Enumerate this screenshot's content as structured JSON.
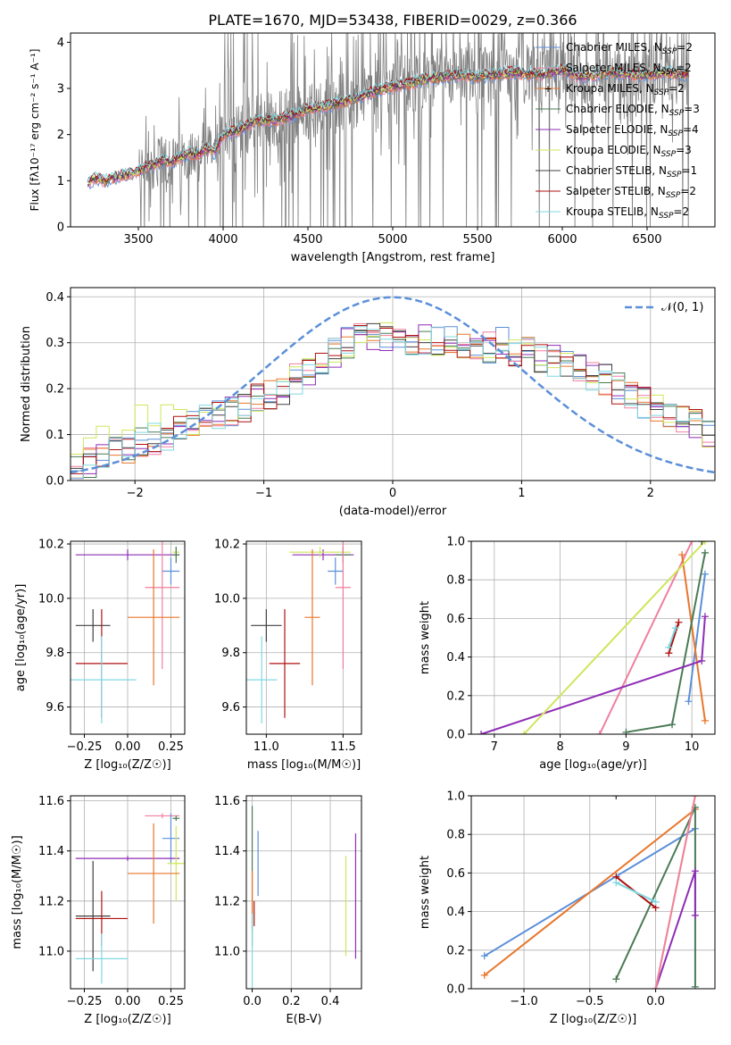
{
  "figure": {
    "title": "PLATE=1670, MJD=53438, FIBERID=0029, z=0.366"
  },
  "colors": {
    "chabrier_miles": "#5b8fd9",
    "salpeter_miles": "#f07f9f",
    "kroupa_miles": "#e8762b",
    "chabrier_elodie": "#4a7a55",
    "salpeter_elodie": "#8e2db5",
    "kroupa_elodie": "#cfe65a",
    "chabrier_stelib": "#404040",
    "salpeter_stelib": "#b01010",
    "kroupa_stelib": "#80d8e0",
    "data": "#808080",
    "gaussian": "#5b8fd9"
  },
  "chart_data": [
    {
      "id": "spectrum",
      "type": "line",
      "xlabel": "wavelength [Angstrom, rest frame]",
      "ylabel": "Flux [fλ10⁻¹⁷ erg cm⁻² s⁻¹ A⁻¹]",
      "xlim": [
        3100,
        6900
      ],
      "ylim": [
        0,
        4.2
      ],
      "xticks": [
        3500,
        4000,
        4500,
        5000,
        5500,
        6000,
        6500
      ],
      "yticks": [
        0,
        1,
        2,
        3,
        4
      ],
      "legend_position": "top-right",
      "legend": [
        {
          "label": "Chabrier MILES, N",
          "sub": "SSP",
          "suffix": "=2",
          "color_key": "chabrier_miles"
        },
        {
          "label": "Salpeter MILES, N",
          "sub": "SSP",
          "suffix": "=2",
          "color_key": "salpeter_miles"
        },
        {
          "label": "Kroupa MILES, N",
          "sub": "SSP",
          "suffix": "=2",
          "color_key": "kroupa_miles"
        },
        {
          "label": "Chabrier ELODIE, N",
          "sub": "SSP",
          "suffix": "=3",
          "color_key": "chabrier_elodie"
        },
        {
          "label": "Salpeter ELODIE, N",
          "sub": "SSP",
          "suffix": "=4",
          "color_key": "salpeter_elodie"
        },
        {
          "label": "Kroupa ELODIE, N",
          "sub": "SSP",
          "suffix": "=3",
          "color_key": "kroupa_elodie"
        },
        {
          "label": "Chabrier STELIB, N",
          "sub": "SSP",
          "suffix": "=1",
          "color_key": "chabrier_stelib"
        },
        {
          "label": "Salpeter STELIB, N",
          "sub": "SSP",
          "suffix": "=2",
          "color_key": "salpeter_stelib"
        },
        {
          "label": "Kroupa STELIB, N",
          "sub": "SSP",
          "suffix": "=2",
          "color_key": "kroupa_stelib"
        }
      ],
      "continuum_x": [
        3200,
        3250,
        3300,
        3350,
        3400,
        3450,
        3500,
        3550,
        3600,
        3650,
        3700,
        3750,
        3800,
        3850,
        3900,
        3950,
        4000,
        4100,
        4200,
        4300,
        4400,
        4500,
        4600,
        4700,
        4800,
        4900,
        5000,
        5100,
        5200,
        5300,
        5400,
        5500,
        5600,
        5700,
        5800,
        5900,
        6000,
        6100,
        6200,
        6300,
        6400,
        6500,
        6600,
        6700,
        6750
      ],
      "continuum_y": [
        0.95,
        1.05,
        1.0,
        1.05,
        1.1,
        1.15,
        1.2,
        1.3,
        1.35,
        1.45,
        1.4,
        1.5,
        1.6,
        1.55,
        1.7,
        1.6,
        2.0,
        2.1,
        2.3,
        2.3,
        2.4,
        2.55,
        2.6,
        2.7,
        2.8,
        2.95,
        3.05,
        3.1,
        3.2,
        3.25,
        3.3,
        3.25,
        3.3,
        3.35,
        3.3,
        3.3,
        3.4,
        3.25,
        3.3,
        3.35,
        3.3,
        3.3,
        3.35,
        3.3,
        3.3
      ]
    },
    {
      "id": "residuals",
      "type": "histogram",
      "xlabel": "(data-model)/error",
      "ylabel": "Normed distribution",
      "xlim": [
        -2.5,
        2.5
      ],
      "ylim": [
        0,
        0.42
      ],
      "xticks": [
        -2,
        -1,
        0,
        1,
        2
      ],
      "yticks": [
        0.0,
        0.1,
        0.2,
        0.3,
        0.4
      ],
      "legend_position": "top-right",
      "legend": [
        {
          "label": "𝒩(0, 1)",
          "color_key": "gaussian"
        }
      ],
      "bin_width": 0.1,
      "series_base": [
        0.03,
        0.04,
        0.05,
        0.06,
        0.07,
        0.08,
        0.09,
        0.1,
        0.11,
        0.12,
        0.13,
        0.14,
        0.15,
        0.16,
        0.18,
        0.19,
        0.2,
        0.22,
        0.24,
        0.26,
        0.28,
        0.3,
        0.31,
        0.32,
        0.31,
        0.32,
        0.3,
        0.31,
        0.3,
        0.31,
        0.29,
        0.3,
        0.29,
        0.3,
        0.28,
        0.29,
        0.27,
        0.26,
        0.25,
        0.24,
        0.23,
        0.22,
        0.2,
        0.19,
        0.17,
        0.16,
        0.15,
        0.13,
        0.12,
        0.1
      ]
    },
    {
      "id": "age_vs_Z",
      "type": "errorbar",
      "xlabel": "Z [log₁₀(Z/Z☉)]",
      "ylabel": "age  [log₁₀(age/yr)]",
      "xlim": [
        -0.33,
        0.33
      ],
      "ylim": [
        9.5,
        10.21
      ],
      "xticks": [
        -0.25,
        0.0,
        0.25
      ],
      "xticklabels": [
        "−0.25",
        "0.00",
        "0.25"
      ],
      "yticks": [
        9.6,
        9.8,
        10.0,
        10.2
      ],
      "points": [
        {
          "k": "salpeter_elodie",
          "x": 0.0,
          "xe": 0.3,
          "y": 10.16,
          "ye": 0.02
        },
        {
          "k": "kroupa_elodie",
          "x": 0.28,
          "xe": 0.02,
          "y": 10.17,
          "ye": 0.02
        },
        {
          "k": "chabrier_elodie",
          "x": 0.28,
          "xe": 0.02,
          "y": 10.16,
          "ye": 0.03
        },
        {
          "k": "chabrier_miles",
          "x": 0.25,
          "xe": 0.05,
          "y": 10.1,
          "ye": 0.05
        },
        {
          "k": "salpeter_miles",
          "x": 0.2,
          "xe": 0.1,
          "y": 10.04,
          "ye": 0.3
        },
        {
          "k": "kroupa_miles",
          "x": 0.15,
          "xe": 0.15,
          "y": 9.93,
          "ye": 0.25
        },
        {
          "k": "chabrier_stelib",
          "x": -0.2,
          "xe": 0.1,
          "y": 9.9,
          "ye": 0.06
        },
        {
          "k": "salpeter_stelib",
          "x": -0.15,
          "xe": 0.15,
          "y": 9.76,
          "ye": 0.2
        },
        {
          "k": "kroupa_stelib",
          "x": -0.15,
          "xe": 0.2,
          "y": 9.7,
          "ye": 0.16
        }
      ]
    },
    {
      "id": "age_vs_mass",
      "type": "errorbar",
      "xlabel": "mass [log₁₀(M/M☉)]",
      "ylabel": "",
      "xlim": [
        10.87,
        11.62
      ],
      "ylim": [
        9.5,
        10.21
      ],
      "xticks": [
        11.0,
        11.5
      ],
      "yticks": [
        9.6,
        9.8,
        10.0,
        10.2
      ],
      "points": [
        {
          "k": "salpeter_elodie",
          "x": 11.37,
          "xe": 0.2,
          "y": 10.16,
          "ye": 0.02
        },
        {
          "k": "kroupa_elodie",
          "x": 11.35,
          "xe": 0.2,
          "y": 10.17,
          "ye": 0.02
        },
        {
          "k": "chabrier_elodie",
          "x": 11.5,
          "xe": 0.05,
          "y": 10.16,
          "ye": 0.03
        },
        {
          "k": "chabrier_miles",
          "x": 11.45,
          "xe": 0.05,
          "y": 10.1,
          "ye": 0.05
        },
        {
          "k": "salpeter_miles",
          "x": 11.5,
          "xe": 0.05,
          "y": 10.04,
          "ye": 0.3
        },
        {
          "k": "kroupa_miles",
          "x": 11.3,
          "xe": 0.05,
          "y": 9.93,
          "ye": 0.25
        },
        {
          "k": "chabrier_stelib",
          "x": 11.0,
          "xe": 0.1,
          "y": 9.9,
          "ye": 0.06
        },
        {
          "k": "salpeter_stelib",
          "x": 11.12,
          "xe": 0.1,
          "y": 9.76,
          "ye": 0.2
        },
        {
          "k": "kroupa_stelib",
          "x": 10.97,
          "xe": 0.1,
          "y": 9.7,
          "ye": 0.16
        }
      ]
    },
    {
      "id": "weight_vs_age",
      "type": "line",
      "xlabel": "age  [log₁₀(age/yr)]",
      "ylabel": "mass weight",
      "xlim": [
        6.65,
        10.35
      ],
      "ylim": [
        0,
        1.0
      ],
      "xticks": [
        7,
        8,
        9,
        10
      ],
      "yticks": [
        0.0,
        0.2,
        0.4,
        0.6,
        0.8,
        1.0
      ],
      "series": [
        {
          "k": "chabrier_miles",
          "x": [
            9.95,
            10.2
          ],
          "y": [
            0.17,
            0.83
          ]
        },
        {
          "k": "salpeter_miles",
          "x": [
            8.6,
            10.0
          ],
          "y": [
            0.0,
            1.0
          ]
        },
        {
          "k": "kroupa_miles",
          "x": [
            9.85,
            10.2
          ],
          "y": [
            0.93,
            0.07
          ]
        },
        {
          "k": "chabrier_elodie",
          "x": [
            9.0,
            9.7,
            10.2
          ],
          "y": [
            0.01,
            0.05,
            0.94
          ]
        },
        {
          "k": "salpeter_elodie",
          "x": [
            6.8,
            10.15,
            10.2
          ],
          "y": [
            0.0,
            0.38,
            0.61
          ]
        },
        {
          "k": "kroupa_elodie",
          "x": [
            7.45,
            10.2
          ],
          "y": [
            0.0,
            1.0
          ]
        },
        {
          "k": "chabrier_stelib",
          "x": [
            10.15
          ],
          "y": [
            1.0
          ]
        },
        {
          "k": "salpeter_stelib",
          "x": [
            9.65,
            9.8
          ],
          "y": [
            0.42,
            0.58
          ]
        },
        {
          "k": "kroupa_stelib",
          "x": [
            9.65,
            9.75
          ],
          "y": [
            0.45,
            0.55
          ]
        }
      ]
    },
    {
      "id": "mass_vs_Z",
      "type": "errorbar",
      "xlabel": "Z [log₁₀(Z/Z☉)]",
      "ylabel": "mass [log₁₀(M/M☉)]",
      "xlim": [
        -0.33,
        0.33
      ],
      "ylim": [
        10.85,
        11.62
      ],
      "xticks": [
        -0.25,
        0.0,
        0.25
      ],
      "xticklabels": [
        "−0.25",
        "0.00",
        "0.25"
      ],
      "yticks": [
        11.0,
        11.2,
        11.4,
        11.6
      ],
      "points": [
        {
          "k": "salpeter_miles",
          "x": 0.2,
          "xe": 0.1,
          "y": 11.54,
          "ye": 0.01
        },
        {
          "k": "chabrier_elodie",
          "x": 0.28,
          "xe": 0.02,
          "y": 11.53,
          "ye": 0.01
        },
        {
          "k": "chabrier_miles",
          "x": 0.25,
          "xe": 0.05,
          "y": 11.45,
          "ye": 0.1
        },
        {
          "k": "salpeter_elodie",
          "x": 0.0,
          "xe": 0.3,
          "y": 11.37,
          "ye": 0.01
        },
        {
          "k": "kroupa_elodie",
          "x": 0.28,
          "xe": 0.05,
          "y": 11.35,
          "ye": 0.15
        },
        {
          "k": "kroupa_miles",
          "x": 0.15,
          "xe": 0.15,
          "y": 11.31,
          "ye": 0.2
        },
        {
          "k": "chabrier_stelib",
          "x": -0.2,
          "xe": 0.1,
          "y": 11.14,
          "ye": 0.22
        },
        {
          "k": "salpeter_stelib",
          "x": -0.15,
          "xe": 0.15,
          "y": 11.13,
          "ye": 0.11
        },
        {
          "k": "kroupa_stelib",
          "x": -0.15,
          "xe": 0.15,
          "y": 10.97,
          "ye": 0.1
        }
      ]
    },
    {
      "id": "mass_vs_ebv",
      "type": "errorbar",
      "xlabel": "E(B-V)",
      "ylabel": "",
      "xlim": [
        -0.03,
        0.56
      ],
      "ylim": [
        10.85,
        11.62
      ],
      "xticks": [
        0.0,
        0.2,
        0.4
      ],
      "yticks": [
        11.0,
        11.2,
        11.4,
        11.6
      ],
      "points": [
        {
          "k": "chabrier_elodie",
          "x": 0.0,
          "xe": 0.0,
          "y": 11.3,
          "ye": 0.28
        },
        {
          "k": "chabrier_miles",
          "x": 0.03,
          "xe": 0.0,
          "y": 11.35,
          "ye": 0.13
        },
        {
          "k": "kroupa_miles",
          "x": 0.0,
          "xe": 0.0,
          "y": 11.2,
          "ye": 0.12
        },
        {
          "k": "salpeter_stelib",
          "x": 0.01,
          "xe": 0.0,
          "y": 11.15,
          "ye": 0.05
        },
        {
          "k": "kroupa_stelib",
          "x": 0.0,
          "xe": 0.0,
          "y": 11.0,
          "ye": 0.15
        },
        {
          "k": "kroupa_elodie",
          "x": 0.48,
          "xe": 0.0,
          "y": 11.18,
          "ye": 0.2
        },
        {
          "k": "salpeter_elodie",
          "x": 0.53,
          "xe": 0.0,
          "y": 11.22,
          "ye": 0.25
        }
      ]
    },
    {
      "id": "weight_vs_Z",
      "type": "line",
      "xlabel": "Z [log₁₀(Z/Z☉)]",
      "ylabel": "mass weight",
      "xlim": [
        -1.4,
        0.45
      ],
      "ylim": [
        0,
        1.0
      ],
      "xticks": [
        -1.0,
        -0.5,
        0.0
      ],
      "xticklabels": [
        "−1.0",
        "−0.5",
        "0.0"
      ],
      "yticks": [
        0.0,
        0.2,
        0.4,
        0.6,
        0.8,
        1.0
      ],
      "series": [
        {
          "k": "chabrier_miles",
          "x": [
            -1.3,
            0.3
          ],
          "y": [
            0.17,
            0.83
          ]
        },
        {
          "k": "kroupa_miles",
          "x": [
            -1.3,
            0.3
          ],
          "y": [
            0.07,
            0.93
          ]
        },
        {
          "k": "chabrier_elodie",
          "x": [
            -0.3,
            0.3,
            0.3
          ],
          "y": [
            0.05,
            0.94,
            0.01
          ]
        },
        {
          "k": "salpeter_elodie",
          "x": [
            0.0,
            0.3,
            0.3
          ],
          "y": [
            0.0,
            0.61,
            0.38
          ]
        },
        {
          "k": "kroupa_elodie",
          "x": [
            0.0,
            0.3
          ],
          "y": [
            0.0,
            1.0
          ]
        },
        {
          "k": "salpeter_miles",
          "x": [
            0.0,
            0.3
          ],
          "y": [
            0.0,
            1.0
          ]
        },
        {
          "k": "salpeter_stelib",
          "x": [
            -0.3,
            0.0
          ],
          "y": [
            0.58,
            0.42
          ]
        },
        {
          "k": "kroupa_stelib",
          "x": [
            -0.3,
            0.0
          ],
          "y": [
            0.55,
            0.45
          ]
        },
        {
          "k": "chabrier_stelib",
          "x": [
            -0.3
          ],
          "y": [
            1.0
          ]
        }
      ]
    }
  ]
}
